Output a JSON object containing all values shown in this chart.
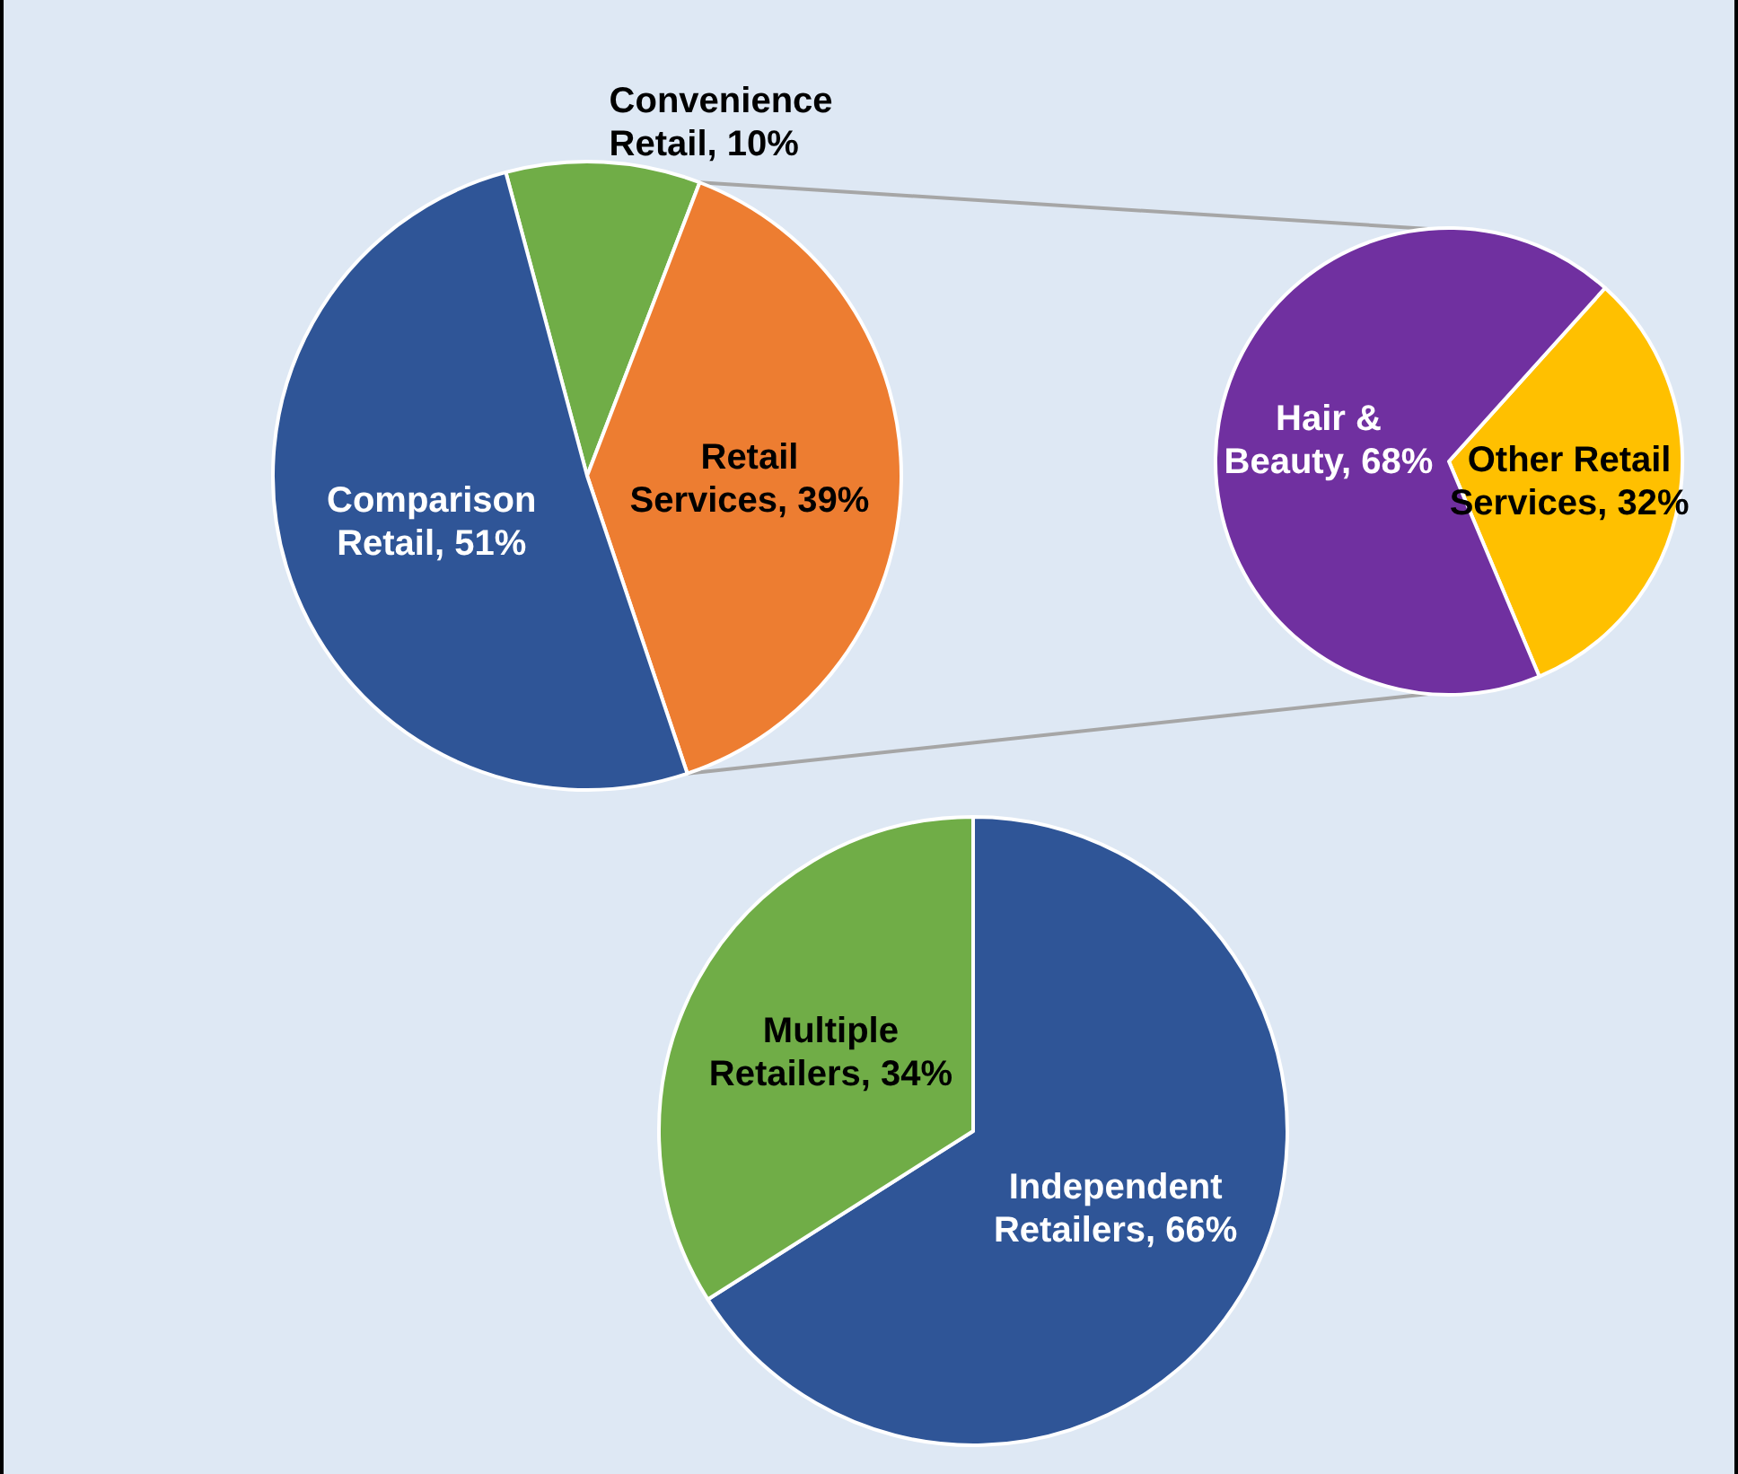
{
  "chart_data": [
    {
      "type": "pie",
      "categories": [
        "Convenience Retail",
        "Retail Services",
        "Comparison Retail"
      ],
      "values": [
        10,
        39,
        51
      ],
      "value_labels": [
        "10%",
        "39%",
        "51%"
      ],
      "colors": [
        "#70ad47",
        "#ed7d31",
        "#2f5597"
      ],
      "legend": false
    },
    {
      "type": "pie",
      "categories": [
        "Other Retail Services",
        "Hair & Beauty"
      ],
      "values": [
        32,
        68
      ],
      "value_labels": [
        "32%",
        "68%"
      ],
      "colors": [
        "#ffc000",
        "#7030a0"
      ],
      "legend": false
    },
    {
      "type": "pie",
      "categories": [
        "Independent Retailers",
        "Multiple Retailers"
      ],
      "values": [
        66,
        34
      ],
      "value_labels": [
        "66%",
        "34%"
      ],
      "colors": [
        "#2f5597",
        "#70ad47"
      ],
      "legend": false
    }
  ]
}
